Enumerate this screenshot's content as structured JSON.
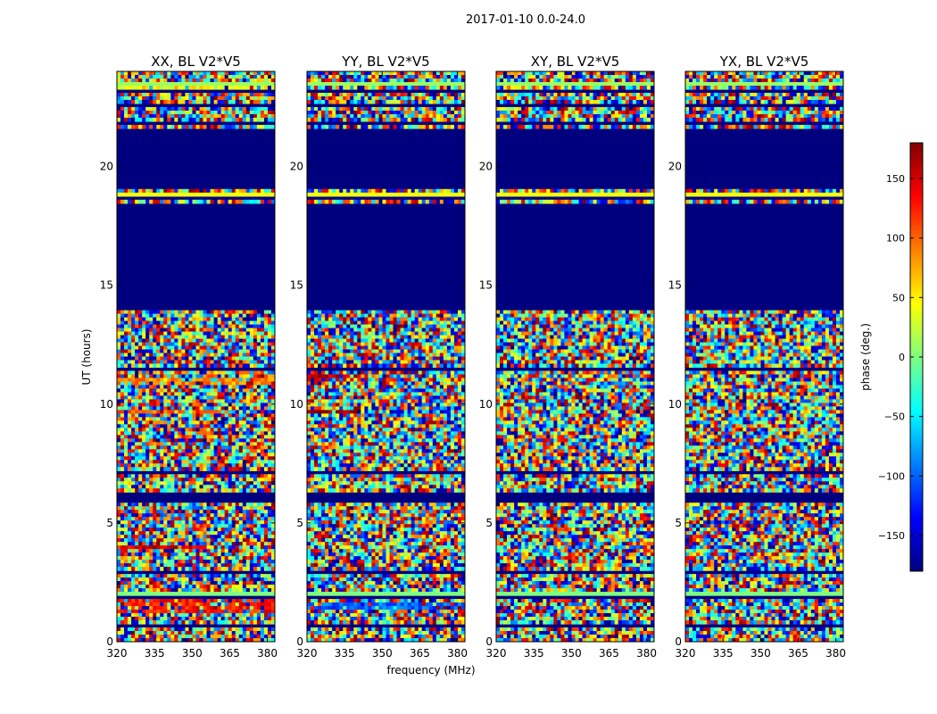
{
  "chart_data": {
    "type": "heatmap",
    "suptitle": "2017-01-10 0.0-24.0",
    "xlabel": "frequency (MHz)",
    "ylabel": "UT (hours)",
    "xlim": [
      320,
      383
    ],
    "ylim": [
      0,
      24
    ],
    "xticks": [
      320,
      335,
      350,
      365,
      380
    ],
    "yticks": [
      0,
      5,
      10,
      15,
      20
    ],
    "colorbar": {
      "label": "phase (deg.)",
      "range": [
        -180,
        180
      ],
      "ticks": [
        -150,
        -100,
        -50,
        0,
        50,
        100,
        150
      ],
      "tick_labels": [
        "−150",
        "−100",
        "−50",
        "0",
        "50",
        "100",
        "150"
      ],
      "colormap": [
        "#00007f",
        "#0000ff",
        "#007fff",
        "#00ffff",
        "#7fff7f",
        "#ffff00",
        "#ff7f00",
        "#ff0000",
        "#7f0000"
      ]
    },
    "panels": [
      {
        "title": "XX, BL V2*V5",
        "features": [
          {
            "t0": 1.2,
            "t1": 1.8,
            "phase": 130,
            "f1": 383
          },
          {
            "t0": 3.95,
            "t1": 4.1,
            "phase": 150,
            "f1": 363
          },
          {
            "t0": 9.6,
            "t1": 9.8,
            "phase": 100,
            "f1": 360
          },
          {
            "t0": 10.8,
            "t1": 11.1,
            "phase": 90,
            "f1": 383
          },
          {
            "t0": 23.2,
            "t1": 23.5,
            "phase": 40,
            "f1": 383
          }
        ]
      },
      {
        "title": "YY, BL V2*V5",
        "features": [
          {
            "t0": 1.4,
            "t1": 1.7,
            "phase": -100,
            "f1": 383
          },
          {
            "t0": 9.65,
            "t1": 9.8,
            "phase": 170,
            "f1": 340
          },
          {
            "t0": 10.9,
            "t1": 11.2,
            "phase": 160,
            "f1": 345
          }
        ]
      },
      {
        "title": "XY, BL V2*V5",
        "features": []
      },
      {
        "title": "YX, BL V2*V5",
        "features": []
      }
    ],
    "flagged_value": -180,
    "flagged_ranges": [
      [
        0,
        0.05
      ],
      [
        0.65,
        0.72
      ],
      [
        1.0,
        1.06
      ],
      [
        1.85,
        2.0
      ],
      [
        2.05,
        2.1
      ],
      [
        2.85,
        3.0
      ],
      [
        3.4,
        3.45
      ],
      [
        4.45,
        4.5
      ],
      [
        5.1,
        5.15
      ],
      [
        5.55,
        5.6
      ],
      [
        5.9,
        6.3
      ],
      [
        7.1,
        7.15
      ],
      [
        7.75,
        7.8
      ],
      [
        9.45,
        9.5
      ],
      [
        10.65,
        10.7
      ],
      [
        11.45,
        11.5
      ],
      [
        12.55,
        12.6
      ],
      [
        13.2,
        13.25
      ],
      [
        13.9,
        18.5
      ],
      [
        18.65,
        18.7
      ],
      [
        19.05,
        21.55
      ],
      [
        21.8,
        21.85
      ],
      [
        22.55,
        22.6
      ],
      [
        23.1,
        23.2
      ],
      [
        23.55,
        23.6
      ],
      [
        23.95,
        24.0
      ]
    ],
    "uniform_rows": [
      {
        "t0": 2.0,
        "t1": 2.05,
        "phase": 0
      },
      {
        "t0": 23.45,
        "t1": 23.55,
        "phase": 10
      },
      {
        "t0": 21.6,
        "t1": 21.65,
        "phase": 0
      },
      {
        "t0": 18.75,
        "t1": 18.85,
        "phase": 40
      },
      {
        "t0": 7.3,
        "t1": 7.4,
        "phase": -175
      }
    ]
  }
}
